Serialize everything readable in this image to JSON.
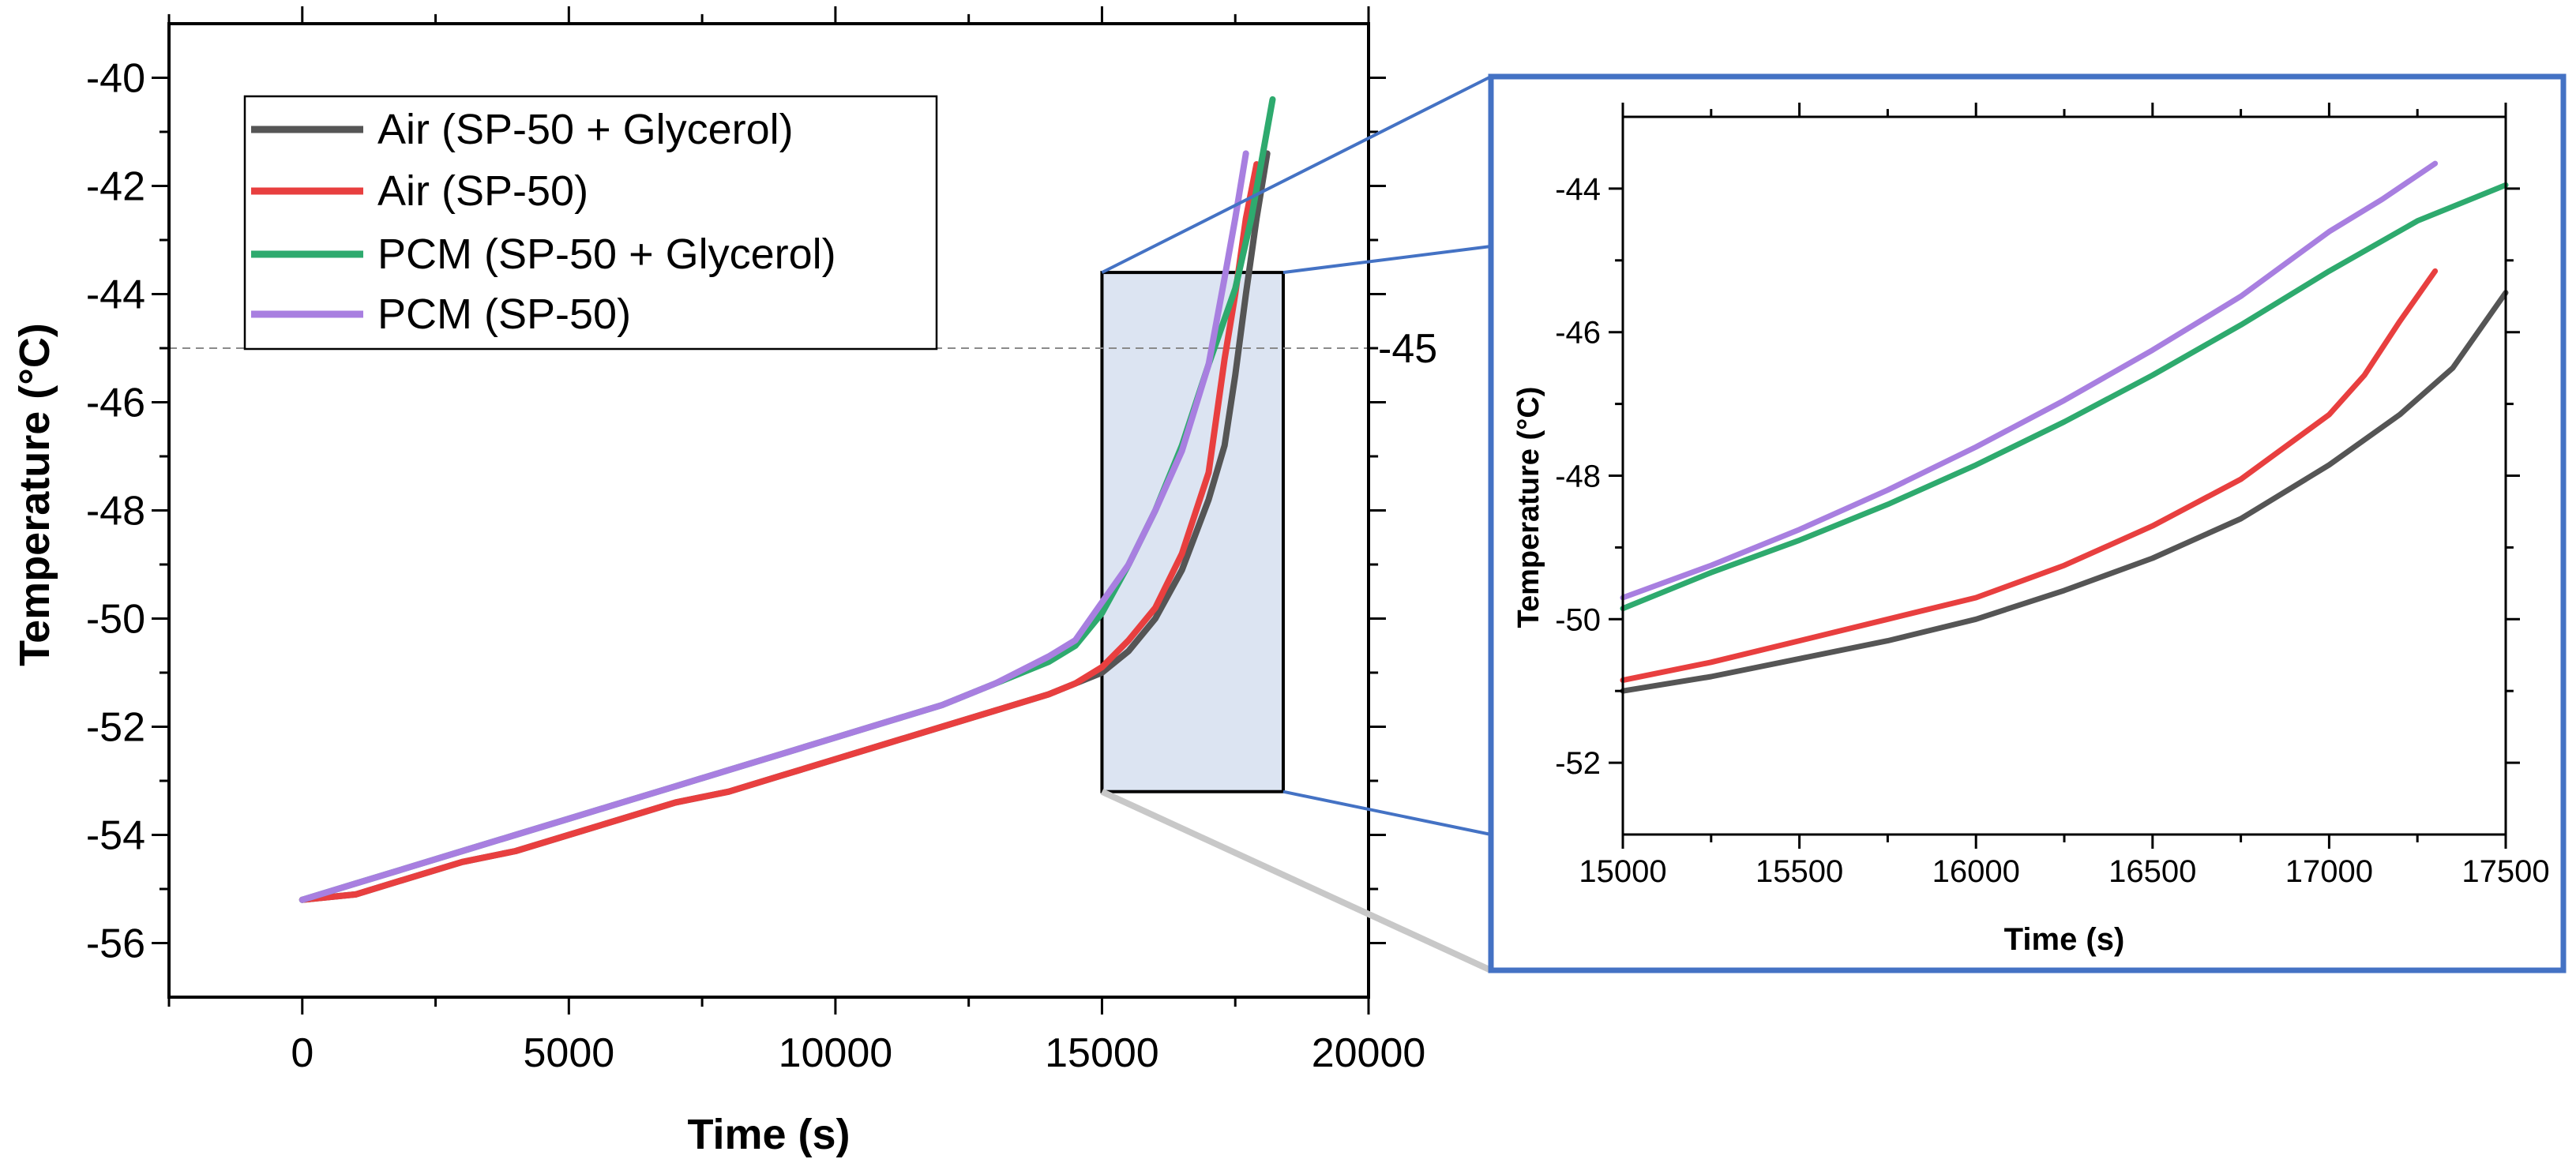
{
  "chart_data": [
    {
      "id": "main",
      "type": "line",
      "title": "",
      "xlabel": "Time (s)",
      "ylabel": "Temperature  (°C)",
      "xlim": [
        -2500,
        20000
      ],
      "ylim": [
        -57,
        -39
      ],
      "xticks": [
        0,
        5000,
        10000,
        15000,
        20000
      ],
      "yticks": [
        -56,
        -54,
        -52,
        -50,
        -48,
        -46,
        -44,
        -42,
        -40
      ],
      "reference_line": {
        "y": -45,
        "label": "-45",
        "style": "dashed"
      },
      "zoom_region": {
        "x": [
          15000,
          18400
        ],
        "y": [
          -53.2,
          -43.6
        ]
      },
      "legend": {
        "position": "top-left",
        "entries": [
          "Air (SP-50 + Glycerol)",
          "Air (SP-50)",
          "PCM (SP-50 + Glycerol)",
          "PCM (SP-50)"
        ]
      },
      "series": [
        {
          "name": "Air (SP-50 + Glycerol)",
          "color": "#555555",
          "x": [
            0,
            1000,
            2000,
            3000,
            4000,
            5000,
            6000,
            7000,
            8000,
            9000,
            10000,
            11000,
            12000,
            13000,
            14000,
            14500,
            15000,
            15500,
            16000,
            16500,
            17000,
            17300,
            17500,
            17700,
            17900,
            18100
          ],
          "y": [
            -55.2,
            -55.1,
            -54.8,
            -54.5,
            -54.3,
            -54.0,
            -53.7,
            -53.4,
            -53.2,
            -52.9,
            -52.6,
            -52.3,
            -52.0,
            -51.7,
            -51.4,
            -51.2,
            -51.0,
            -50.6,
            -50.0,
            -49.1,
            -47.8,
            -46.8,
            -45.5,
            -44.0,
            -42.6,
            -41.4
          ]
        },
        {
          "name": "Air (SP-50)",
          "color": "#e83f3f",
          "x": [
            0,
            1000,
            2000,
            3000,
            4000,
            5000,
            6000,
            7000,
            8000,
            9000,
            10000,
            11000,
            12000,
            13000,
            14000,
            14500,
            15000,
            15500,
            16000,
            16500,
            17000,
            17300,
            17500,
            17700,
            17900
          ],
          "y": [
            -55.2,
            -55.1,
            -54.8,
            -54.5,
            -54.3,
            -54.0,
            -53.7,
            -53.4,
            -53.2,
            -52.9,
            -52.6,
            -52.3,
            -52.0,
            -51.7,
            -51.4,
            -51.2,
            -50.9,
            -50.4,
            -49.8,
            -48.8,
            -47.3,
            -45.2,
            -44.0,
            -42.6,
            -41.6
          ]
        },
        {
          "name": "PCM (SP-50 + Glycerol)",
          "color": "#2eaa6e",
          "x": [
            0,
            1000,
            2000,
            3000,
            4000,
            5000,
            6000,
            7000,
            8000,
            9000,
            10000,
            11000,
            12000,
            13000,
            14000,
            14500,
            15000,
            15500,
            16000,
            16500,
            17000,
            17500,
            17800,
            18000,
            18200
          ],
          "y": [
            -55.2,
            -54.9,
            -54.6,
            -54.3,
            -54.0,
            -53.7,
            -53.4,
            -53.1,
            -52.8,
            -52.5,
            -52.2,
            -51.9,
            -51.6,
            -51.2,
            -50.8,
            -50.5,
            -49.9,
            -49.0,
            -48.0,
            -46.8,
            -45.3,
            -43.9,
            -42.6,
            -41.5,
            -40.4
          ]
        },
        {
          "name": "PCM (SP-50)",
          "color": "#a87fe0",
          "x": [
            0,
            1000,
            2000,
            3000,
            4000,
            5000,
            6000,
            7000,
            8000,
            9000,
            10000,
            11000,
            12000,
            13000,
            14000,
            14500,
            15000,
            15500,
            16000,
            16500,
            17000,
            17300,
            17500,
            17700
          ],
          "y": [
            -55.2,
            -54.9,
            -54.6,
            -54.3,
            -54.0,
            -53.7,
            -53.4,
            -53.1,
            -52.8,
            -52.5,
            -52.2,
            -51.9,
            -51.6,
            -51.2,
            -50.7,
            -50.4,
            -49.7,
            -49.0,
            -48.0,
            -46.9,
            -45.3,
            -43.7,
            -42.6,
            -41.4
          ]
        }
      ]
    },
    {
      "id": "inset",
      "type": "line",
      "title": "",
      "xlabel": "Time (s)",
      "ylabel": "Temperature (°C)",
      "xlim": [
        15000,
        17500
      ],
      "ylim": [
        -53,
        -43
      ],
      "xticks": [
        15000,
        15500,
        16000,
        16500,
        17000,
        17500
      ],
      "yticks": [
        -52,
        -50,
        -48,
        -46,
        -44
      ],
      "series": [
        {
          "name": "Air (SP-50 + Glycerol)",
          "color": "#555555",
          "x": [
            15000,
            15250,
            15500,
            15750,
            16000,
            16250,
            16500,
            16750,
            17000,
            17200,
            17350,
            17500
          ],
          "y": [
            -51.0,
            -50.8,
            -50.55,
            -50.3,
            -50.0,
            -49.6,
            -49.15,
            -48.6,
            -47.85,
            -47.15,
            -46.5,
            -45.45
          ]
        },
        {
          "name": "Air (SP-50)",
          "color": "#e83f3f",
          "x": [
            15000,
            15250,
            15500,
            15750,
            16000,
            16250,
            16500,
            16750,
            17000,
            17100,
            17200,
            17300
          ],
          "y": [
            -50.85,
            -50.6,
            -50.3,
            -50.0,
            -49.7,
            -49.25,
            -48.7,
            -48.05,
            -47.15,
            -46.6,
            -45.85,
            -45.15
          ]
        },
        {
          "name": "PCM (SP-50 + Glycerol)",
          "color": "#2eaa6e",
          "x": [
            15000,
            15250,
            15500,
            15750,
            16000,
            16250,
            16500,
            16750,
            17000,
            17250,
            17500
          ],
          "y": [
            -49.85,
            -49.35,
            -48.9,
            -48.4,
            -47.85,
            -47.25,
            -46.6,
            -45.9,
            -45.15,
            -44.45,
            -43.95
          ]
        },
        {
          "name": "PCM (SP-50)",
          "color": "#a87fe0",
          "x": [
            15000,
            15250,
            15500,
            15750,
            16000,
            16250,
            16500,
            16750,
            17000,
            17150,
            17300
          ],
          "y": [
            -49.7,
            -49.25,
            -48.75,
            -48.2,
            -47.6,
            -46.95,
            -46.25,
            -45.5,
            -44.6,
            -44.15,
            -43.65
          ]
        }
      ]
    }
  ]
}
